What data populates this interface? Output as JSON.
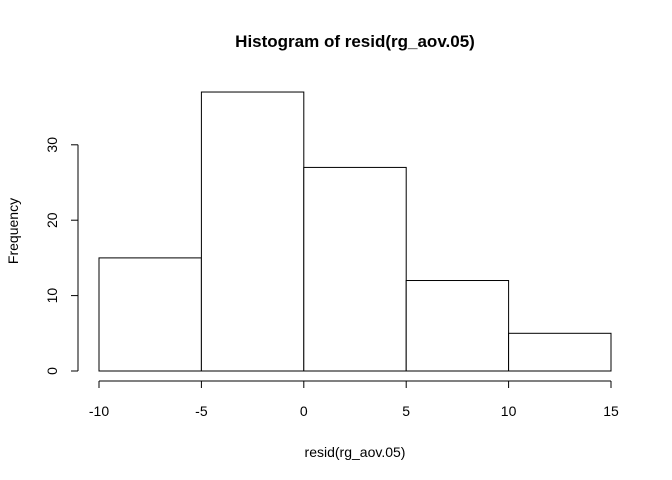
{
  "chart_data": {
    "type": "bar",
    "title": "Histogram of resid(rg_aov.05)",
    "xlabel": "resid(rg_aov.05)",
    "ylabel": "Frequency",
    "bins": [
      {
        "start": -10,
        "end": -5,
        "count": 15
      },
      {
        "start": -5,
        "end": 0,
        "count": 37
      },
      {
        "start": 0,
        "end": 5,
        "count": 27
      },
      {
        "start": 5,
        "end": 10,
        "count": 12
      },
      {
        "start": 10,
        "end": 15,
        "count": 5
      }
    ],
    "xlim": [
      -10,
      15
    ],
    "ylim": [
      0,
      37
    ],
    "xticks": [
      -10,
      -5,
      0,
      5,
      10,
      15
    ],
    "yticks": [
      0,
      10,
      20,
      30
    ],
    "grid": false,
    "legend": "none",
    "bar_fill": "#ffffff",
    "bar_stroke": "#000000"
  }
}
